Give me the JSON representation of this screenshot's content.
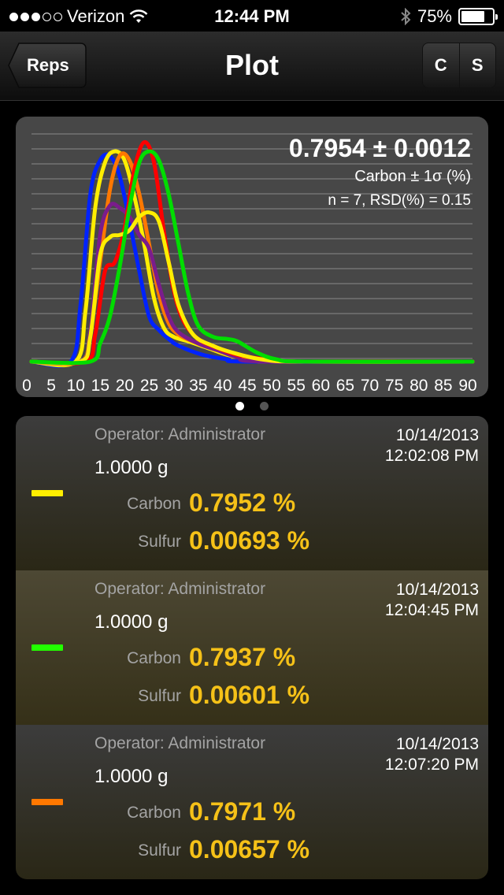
{
  "status_bar": {
    "carrier": "Verizon",
    "time": "12:44 PM",
    "battery": "75%",
    "battery_level": 0.75,
    "signal_bars": 3,
    "signal_total": 5
  },
  "nav": {
    "back_label": "Reps",
    "title": "Plot",
    "seg_c": "C",
    "seg_s": "S"
  },
  "stats": {
    "value": "0.7954 ± 0.0012",
    "label": "Carbon ± 1σ (%)",
    "summary": "n = 7, RSD(%) = 0.15"
  },
  "pager": {
    "pages": 2,
    "active": 0
  },
  "chart_data": {
    "type": "line",
    "x_ticks": [
      "0",
      "5",
      "10",
      "15",
      "20",
      "25",
      "30",
      "35",
      "40",
      "45",
      "50",
      "55",
      "60",
      "65",
      "70",
      "75",
      "80",
      "85",
      "90"
    ],
    "xlim": [
      0,
      90
    ],
    "ylim": [
      0,
      100
    ],
    "grid": true,
    "series": [
      {
        "color": "#0022ff",
        "points": [
          [
            0,
            0
          ],
          [
            8,
            0
          ],
          [
            10,
            25
          ],
          [
            12,
            74
          ],
          [
            14,
            89
          ],
          [
            16,
            91
          ],
          [
            18,
            82
          ],
          [
            20,
            62
          ],
          [
            22,
            40
          ],
          [
            24,
            20
          ],
          [
            26,
            14
          ],
          [
            28,
            10
          ],
          [
            30,
            7
          ],
          [
            35,
            3
          ],
          [
            40,
            1
          ],
          [
            45,
            0
          ],
          [
            90,
            0
          ]
        ]
      },
      {
        "color": "#ffee00",
        "points": [
          [
            0,
            0
          ],
          [
            9,
            0
          ],
          [
            11,
            22
          ],
          [
            13,
            68
          ],
          [
            15,
            88
          ],
          [
            17,
            93
          ],
          [
            19,
            89
          ],
          [
            21,
            73
          ],
          [
            23,
            52
          ],
          [
            25,
            28
          ],
          [
            27,
            15
          ],
          [
            29,
            11
          ],
          [
            32,
            9
          ],
          [
            36,
            6
          ],
          [
            40,
            3
          ],
          [
            45,
            1
          ],
          [
            50,
            0
          ],
          [
            90,
            0
          ]
        ]
      },
      {
        "color": "#ff7800",
        "points": [
          [
            0,
            0
          ],
          [
            10,
            0
          ],
          [
            12,
            13
          ],
          [
            14,
            44
          ],
          [
            16,
            76
          ],
          [
            18,
            91
          ],
          [
            20,
            89
          ],
          [
            22,
            74
          ],
          [
            24,
            52
          ],
          [
            26,
            30
          ],
          [
            28,
            17
          ],
          [
            30,
            12
          ],
          [
            33,
            9
          ],
          [
            37,
            7
          ],
          [
            40,
            4
          ],
          [
            46,
            1
          ],
          [
            52,
            0
          ],
          [
            90,
            0
          ]
        ]
      },
      {
        "color": "#7a1c8c",
        "points": [
          [
            0,
            0
          ],
          [
            10,
            0
          ],
          [
            12,
            13
          ],
          [
            14,
            56
          ],
          [
            16,
            69
          ],
          [
            18,
            68
          ],
          [
            20,
            64
          ],
          [
            22,
            56
          ],
          [
            24,
            50
          ],
          [
            26,
            34
          ],
          [
            28,
            20
          ],
          [
            30,
            13
          ],
          [
            34,
            8
          ],
          [
            38,
            5
          ],
          [
            42,
            2
          ],
          [
            48,
            0
          ],
          [
            90,
            0
          ]
        ]
      },
      {
        "color": "#ff0000",
        "points": [
          [
            0,
            0
          ],
          [
            11,
            0
          ],
          [
            13,
            12
          ],
          [
            15,
            40
          ],
          [
            17,
            44
          ],
          [
            19,
            59
          ],
          [
            21,
            85
          ],
          [
            23,
            97
          ],
          [
            25,
            88
          ],
          [
            27,
            58
          ],
          [
            29,
            32
          ],
          [
            31,
            18
          ],
          [
            34,
            10
          ],
          [
            38,
            6
          ],
          [
            42,
            3
          ],
          [
            48,
            1
          ],
          [
            55,
            0
          ],
          [
            90,
            0
          ]
        ]
      },
      {
        "color": "#ffee00",
        "points": [
          [
            0,
            0
          ],
          [
            10,
            0
          ],
          [
            12,
            11
          ],
          [
            14,
            47
          ],
          [
            16,
            55
          ],
          [
            18,
            56
          ],
          [
            20,
            58
          ],
          [
            22,
            64
          ],
          [
            24,
            66
          ],
          [
            26,
            62
          ],
          [
            28,
            44
          ],
          [
            30,
            25
          ],
          [
            33,
            12
          ],
          [
            37,
            7
          ],
          [
            41,
            4
          ],
          [
            47,
            1
          ],
          [
            55,
            0
          ],
          [
            90,
            0
          ]
        ]
      },
      {
        "color": "#00dd00",
        "points": [
          [
            0,
            0
          ],
          [
            12,
            0
          ],
          [
            14,
            8
          ],
          [
            16,
            20
          ],
          [
            18,
            42
          ],
          [
            20,
            68
          ],
          [
            22,
            88
          ],
          [
            24,
            93
          ],
          [
            26,
            89
          ],
          [
            28,
            74
          ],
          [
            30,
            52
          ],
          [
            32,
            30
          ],
          [
            34,
            16
          ],
          [
            37,
            11
          ],
          [
            40,
            10
          ],
          [
            42,
            9
          ],
          [
            46,
            4
          ],
          [
            50,
            1
          ],
          [
            56,
            0
          ],
          [
            90,
            0
          ]
        ]
      }
    ]
  },
  "results": [
    {
      "operator": "Operator: Administrator",
      "mass": "1.0000 g",
      "date": "10/14/2013",
      "time": "12:02:08 PM",
      "carbon_label": "Carbon",
      "carbon": "0.7952 %",
      "sulfur_label": "Sulfur",
      "sulfur": "0.00693 %",
      "color": "#ffee00"
    },
    {
      "operator": "Operator: Administrator",
      "mass": "1.0000 g",
      "date": "10/14/2013",
      "time": "12:04:45 PM",
      "carbon_label": "Carbon",
      "carbon": "0.7937 %",
      "sulfur_label": "Sulfur",
      "sulfur": "0.00601 %",
      "color": "#22ff00"
    },
    {
      "operator": "Operator: Administrator",
      "mass": "1.0000 g",
      "date": "10/14/2013",
      "time": "12:07:20 PM",
      "carbon_label": "Carbon",
      "carbon": "0.7971 %",
      "sulfur_label": "Sulfur",
      "sulfur": "0.00657 %",
      "color": "#ff7800"
    }
  ]
}
